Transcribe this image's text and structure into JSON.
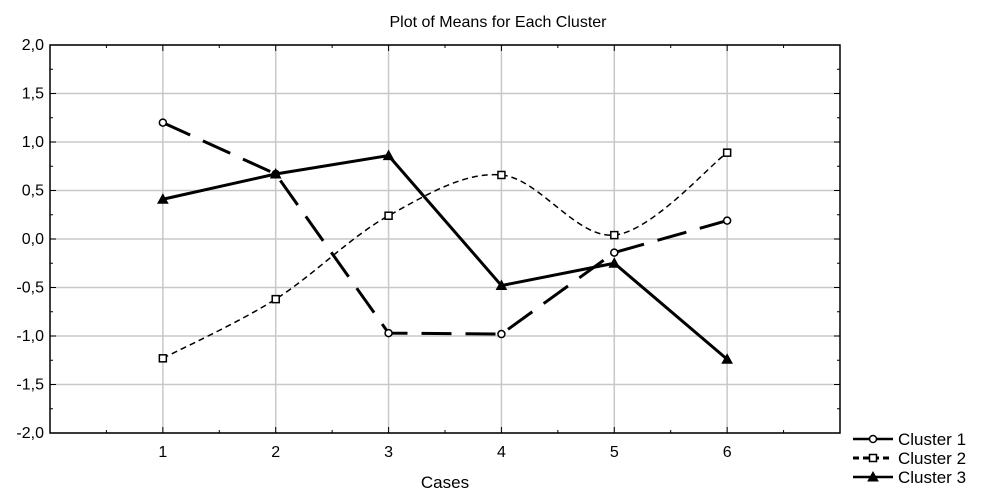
{
  "chart_data": {
    "type": "line",
    "title": "Plot of Means for Each Cluster",
    "xlabel": "Cases",
    "ylabel": "",
    "categories": [
      "1",
      "2",
      "3",
      "4",
      "5",
      "6"
    ],
    "xlim": [
      0,
      7
    ],
    "ylim": [
      -2.0,
      2.0
    ],
    "yticks": [
      "2,0",
      "1,5",
      "1,0",
      "0,5",
      "0,0",
      "-0,5",
      "-1,0",
      "-1,5",
      "-2,0"
    ],
    "ytick_values": [
      2.0,
      1.5,
      1.0,
      0.5,
      0.0,
      -0.5,
      -1.0,
      -1.5,
      -2.0
    ],
    "grid": true,
    "legend_position": "bottom-right, outside plot",
    "series": [
      {
        "name": "Cluster  1",
        "values": [
          1.2,
          0.67,
          -0.97,
          -0.98,
          -0.14,
          0.19
        ],
        "line_style": "long-dash",
        "marker": "circle"
      },
      {
        "name": "Cluster  2",
        "values": [
          -1.23,
          -0.62,
          0.24,
          0.66,
          0.04,
          0.89
        ],
        "line_style": "short-dash",
        "marker": "square"
      },
      {
        "name": "Cluster  3",
        "values": [
          0.41,
          0.67,
          0.86,
          -0.48,
          -0.25,
          -1.24
        ],
        "line_style": "solid",
        "marker": "triangle"
      }
    ],
    "colors": {
      "line": "#000000",
      "grid": "#c8c8c8",
      "background": "#ffffff"
    }
  }
}
